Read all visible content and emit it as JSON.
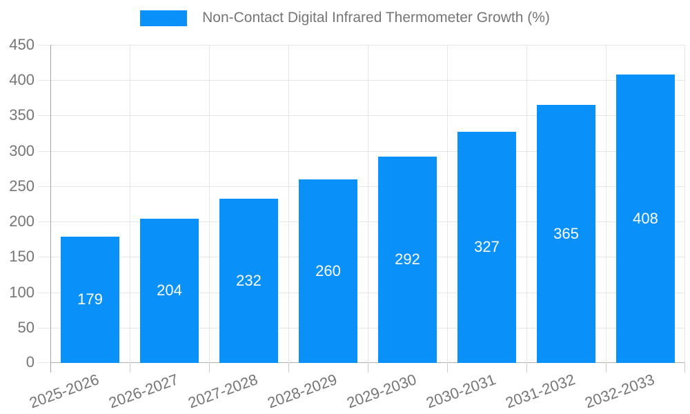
{
  "legend": {
    "label": "Non-Contact Digital Infrared Thermometer Growth (%)"
  },
  "chart_data": {
    "type": "bar",
    "title": "Non-Contact Digital Infrared Thermometer Growth (%)",
    "categories": [
      "2025-2026",
      "2026-2027",
      "2027-2028",
      "2028-2029",
      "2029-2030",
      "2030-2031",
      "2031-2032",
      "2032-2033"
    ],
    "values": [
      179,
      204,
      232,
      260,
      292,
      327,
      365,
      408
    ],
    "series": [
      {
        "name": "Non-Contact Digital Infrared Thermometer Growth (%)",
        "values": [
          179,
          204,
          232,
          260,
          292,
          327,
          365,
          408
        ]
      }
    ],
    "xlabel": "",
    "ylabel": "",
    "ylim": [
      0,
      450
    ],
    "ytick_step": 50,
    "yticks": [
      0,
      50,
      100,
      150,
      200,
      250,
      300,
      350,
      400,
      450
    ],
    "grid": true,
    "legend_position": "top",
    "x_tick_rotation_deg": -20,
    "value_labels_inside_bars": true,
    "colors": {
      "bar": "#0990F9",
      "grid": "#E5E5E5",
      "axis": "#A3A3A3",
      "baseline": "#B0B0B0",
      "tick": "#C9C9C9",
      "label": "#757575",
      "value_label": "#FFFFFF",
      "background": "#FFFFFF"
    }
  }
}
